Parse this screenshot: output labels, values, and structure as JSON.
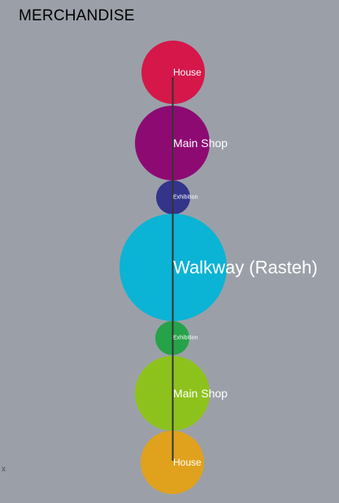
{
  "page": {
    "title": "MERCHANDISE",
    "corner_mark": "x",
    "background": "#9ba0a8"
  },
  "diagram": {
    "axis_color": "#333333",
    "nodes": [
      {
        "label": "House",
        "color": "#d5174a"
      },
      {
        "label": "Main Shop",
        "color": "#8e0a73"
      },
      {
        "label": "Exhibition",
        "color": "#33348a"
      },
      {
        "label": "Walkway (Rasteh)",
        "color": "#0bb3d5"
      },
      {
        "label": "Exhibition",
        "color": "#26a248"
      },
      {
        "label": "Main Shop",
        "color": "#8dc21d"
      },
      {
        "label": "House",
        "color": "#e0a21c"
      }
    ]
  }
}
